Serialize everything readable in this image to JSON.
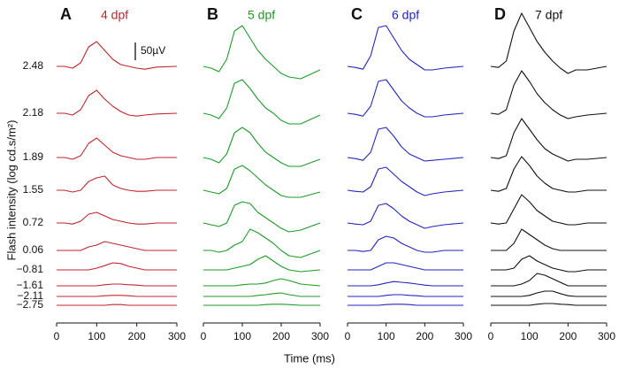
{
  "chart_data": {
    "type": "line",
    "xlabel": "Time (ms)",
    "ylabel": "Flash intensity (log cd.s/m²)",
    "categories": [
      "2.48",
      "2.18",
      "1.89",
      "1.55",
      "0.72",
      "0.06",
      "−0.81",
      "−1.61",
      "−2.11",
      "−2.75"
    ],
    "x": [
      0,
      20,
      40,
      60,
      80,
      100,
      120,
      140,
      160,
      180,
      200,
      220,
      250,
      300
    ],
    "xlim": [
      0,
      300
    ],
    "xticks": [
      0,
      100,
      200,
      300
    ],
    "scale_bar": {
      "value": 50,
      "label": "50µV"
    },
    "panels": [
      {
        "label": "A",
        "title": "4 dpf",
        "color": "#c0262c",
        "series": [
          {
            "values": [
              0,
              0,
              -5,
              10,
              55,
              70,
              45,
              20,
              5,
              0,
              -5,
              -8,
              -2,
              0
            ]
          },
          {
            "values": [
              0,
              0,
              -5,
              10,
              50,
              65,
              40,
              20,
              5,
              -5,
              -8,
              -5,
              -2,
              0
            ]
          },
          {
            "values": [
              0,
              0,
              -5,
              5,
              40,
              55,
              35,
              15,
              5,
              0,
              -5,
              -5,
              0,
              0
            ]
          },
          {
            "values": [
              0,
              0,
              -5,
              0,
              25,
              35,
              40,
              15,
              5,
              0,
              -3,
              -3,
              0,
              0
            ]
          },
          {
            "values": [
              0,
              0,
              -3,
              5,
              25,
              30,
              20,
              10,
              5,
              0,
              -3,
              -3,
              0,
              0
            ]
          },
          {
            "values": [
              0,
              0,
              0,
              0,
              10,
              15,
              25,
              20,
              15,
              10,
              5,
              0,
              0,
              0
            ]
          },
          {
            "values": [
              0,
              0,
              0,
              0,
              0,
              5,
              12,
              20,
              18,
              10,
              5,
              0,
              0,
              0
            ]
          },
          {
            "values": [
              0,
              0,
              0,
              0,
              0,
              0,
              3,
              5,
              5,
              3,
              2,
              0,
              0,
              0
            ]
          },
          {
            "values": [
              0,
              0,
              0,
              0,
              0,
              0,
              2,
              3,
              3,
              2,
              0,
              0,
              0,
              0
            ]
          },
          {
            "values": [
              0,
              0,
              0,
              0,
              0,
              0,
              0,
              2,
              2,
              0,
              0,
              0,
              0,
              0
            ]
          }
        ]
      },
      {
        "label": "B",
        "title": "5 dpf",
        "color": "#1f9a2a",
        "series": [
          {
            "values": [
              0,
              -5,
              -15,
              20,
              100,
              115,
              80,
              45,
              20,
              0,
              -20,
              -30,
              -35,
              -10
            ]
          },
          {
            "values": [
              0,
              -5,
              -15,
              15,
              85,
              95,
              70,
              40,
              15,
              0,
              -20,
              -30,
              -30,
              -5
            ]
          },
          {
            "values": [
              0,
              -5,
              -15,
              10,
              70,
              85,
              70,
              40,
              15,
              0,
              -15,
              -25,
              -25,
              -5
            ]
          },
          {
            "values": [
              0,
              -5,
              -10,
              5,
              60,
              70,
              55,
              35,
              15,
              0,
              -15,
              -20,
              -20,
              -5
            ]
          },
          {
            "values": [
              0,
              -5,
              -10,
              0,
              50,
              60,
              55,
              30,
              15,
              0,
              -15,
              -25,
              -20,
              0
            ]
          },
          {
            "values": [
              0,
              0,
              -5,
              0,
              15,
              25,
              60,
              50,
              35,
              20,
              0,
              -15,
              -20,
              0
            ]
          },
          {
            "values": [
              0,
              0,
              0,
              0,
              5,
              10,
              15,
              30,
              40,
              25,
              10,
              0,
              -5,
              0
            ]
          },
          {
            "values": [
              0,
              0,
              0,
              0,
              0,
              3,
              5,
              5,
              8,
              15,
              20,
              15,
              5,
              0
            ]
          },
          {
            "values": [
              0,
              0,
              0,
              0,
              0,
              0,
              0,
              3,
              5,
              8,
              10,
              5,
              0,
              0
            ]
          },
          {
            "values": [
              0,
              0,
              0,
              0,
              0,
              0,
              0,
              0,
              2,
              3,
              3,
              2,
              0,
              0
            ]
          }
        ]
      },
      {
        "label": "C",
        "title": "6 dpf",
        "color": "#2226c0",
        "series": [
          {
            "values": [
              0,
              -3,
              -8,
              30,
              110,
              115,
              80,
              45,
              20,
              5,
              -10,
              -10,
              -5,
              0
            ]
          },
          {
            "values": [
              0,
              -3,
              -8,
              20,
              90,
              95,
              65,
              35,
              15,
              0,
              -10,
              -10,
              -5,
              0
            ]
          },
          {
            "values": [
              0,
              -3,
              -8,
              15,
              80,
              85,
              60,
              30,
              10,
              0,
              -10,
              -8,
              -5,
              0
            ]
          },
          {
            "values": [
              0,
              -3,
              -5,
              10,
              60,
              65,
              45,
              25,
              10,
              -5,
              -15,
              -10,
              -5,
              0
            ]
          },
          {
            "values": [
              0,
              -3,
              -5,
              5,
              50,
              55,
              40,
              20,
              5,
              -5,
              -15,
              -10,
              -5,
              0
            ]
          },
          {
            "values": [
              0,
              0,
              -3,
              0,
              30,
              40,
              35,
              20,
              10,
              0,
              -5,
              -5,
              0,
              0
            ]
          },
          {
            "values": [
              0,
              0,
              0,
              0,
              10,
              20,
              20,
              15,
              10,
              5,
              0,
              0,
              0,
              0
            ]
          },
          {
            "values": [
              0,
              0,
              0,
              0,
              3,
              8,
              12,
              10,
              8,
              5,
              2,
              0,
              0,
              0
            ]
          },
          {
            "values": [
              0,
              0,
              0,
              0,
              0,
              3,
              5,
              5,
              3,
              2,
              0,
              0,
              0,
              0
            ]
          },
          {
            "values": [
              0,
              0,
              0,
              0,
              0,
              2,
              3,
              3,
              2,
              0,
              0,
              0,
              0,
              0
            ]
          }
        ]
      },
      {
        "label": "D",
        "title": "7 dpf",
        "color": "#111111",
        "series": [
          {
            "values": [
              0,
              -3,
              15,
              100,
              150,
              110,
              70,
              40,
              15,
              -5,
              -20,
              -10,
              -10,
              0
            ]
          },
          {
            "values": [
              0,
              -3,
              10,
              80,
              120,
              90,
              55,
              30,
              10,
              -5,
              -15,
              -10,
              -5,
              0
            ]
          },
          {
            "values": [
              0,
              -3,
              5,
              70,
              110,
              80,
              50,
              25,
              10,
              0,
              -10,
              -5,
              -5,
              0
            ]
          },
          {
            "values": [
              0,
              -3,
              5,
              60,
              95,
              70,
              40,
              20,
              5,
              0,
              -5,
              -5,
              0,
              0
            ]
          },
          {
            "values": [
              0,
              -3,
              0,
              40,
              80,
              60,
              35,
              20,
              5,
              0,
              -5,
              -5,
              0,
              0
            ]
          },
          {
            "values": [
              0,
              0,
              0,
              20,
              60,
              45,
              30,
              15,
              5,
              0,
              0,
              0,
              0,
              0
            ]
          },
          {
            "values": [
              0,
              0,
              0,
              5,
              30,
              40,
              25,
              15,
              5,
              0,
              -5,
              -5,
              0,
              0
            ]
          },
          {
            "values": [
              0,
              0,
              0,
              0,
              5,
              15,
              35,
              30,
              20,
              10,
              0,
              0,
              0,
              0
            ]
          },
          {
            "values": [
              0,
              0,
              0,
              0,
              0,
              3,
              10,
              15,
              15,
              8,
              2,
              0,
              0,
              0
            ]
          },
          {
            "values": [
              0,
              0,
              0,
              0,
              0,
              0,
              3,
              5,
              5,
              3,
              2,
              0,
              0,
              0
            ]
          }
        ]
      }
    ]
  }
}
